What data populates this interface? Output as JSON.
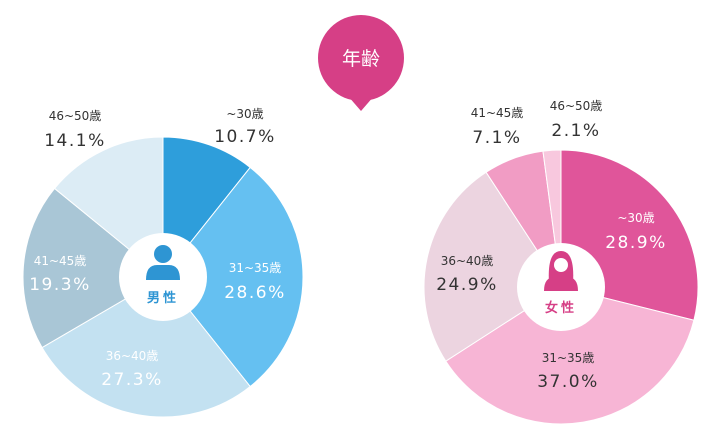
{
  "title": {
    "label": "年齢",
    "color": "#d63f86"
  },
  "chart_data": [
    {
      "type": "pie",
      "name": "男性",
      "icon": "male-person-icon",
      "center_label": "男性",
      "center_color": "#2e95d3",
      "categories": [
        "~30歳",
        "31~35歳",
        "36~40歳",
        "41~45歳",
        "46~50歳"
      ],
      "values": [
        10.7,
        28.6,
        27.3,
        19.3,
        14.1
      ],
      "value_labels": [
        "10.7%",
        "28.6%",
        "27.3%",
        "19.3%",
        "14.1%"
      ],
      "colors": [
        "#2e9edb",
        "#65c0f1",
        "#c3e1f1",
        "#a9c6d6",
        "#dcecf5"
      ],
      "label_colors": [
        "#333333",
        "#ffffff",
        "#ffffff",
        "#ffffff",
        "#333333"
      ]
    },
    {
      "type": "pie",
      "name": "女性",
      "icon": "female-person-icon",
      "center_label": "女性",
      "center_color": "#d63f86",
      "categories": [
        "~30歳",
        "31~35歳",
        "36~40歳",
        "41~45歳",
        "46~50歳"
      ],
      "values": [
        28.9,
        37.0,
        24.9,
        7.1,
        2.1
      ],
      "value_labels": [
        "28.9%",
        "37.0%",
        "24.9%",
        "7.1%",
        "2.1%"
      ],
      "colors": [
        "#e0559a",
        "#f7b5d5",
        "#ecd4e0",
        "#f19cc4",
        "#f8c8de"
      ],
      "label_colors": [
        "#ffffff",
        "#333333",
        "#333333",
        "#333333",
        "#333333"
      ]
    }
  ]
}
